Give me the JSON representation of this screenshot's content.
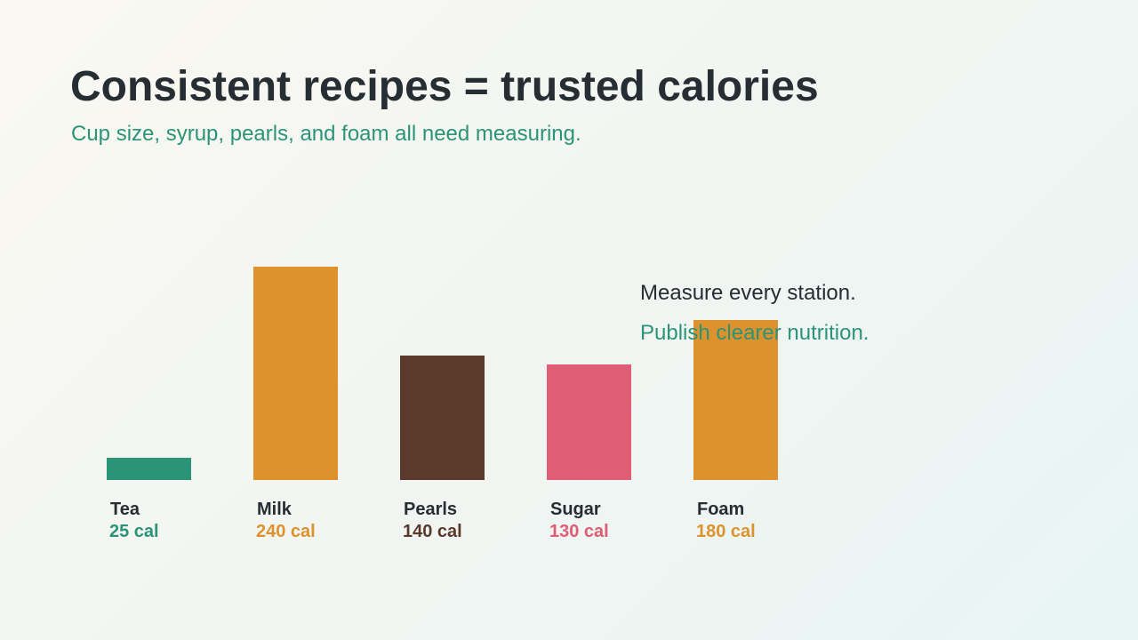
{
  "title": "Consistent recipes = trusted calories",
  "subtitle": "Cup size, syrup, pearls, and foam all need measuring.",
  "notes": {
    "line1": "Measure every station.",
    "line2": "Publish clearer nutrition."
  },
  "colors": {
    "title": "#262d33",
    "accent": "#2b9478"
  },
  "chart_data": {
    "type": "bar",
    "categories": [
      "Tea",
      "Milk",
      "Pearls",
      "Sugar",
      "Foam"
    ],
    "values": [
      25,
      240,
      140,
      130,
      180
    ],
    "value_labels": [
      "25 cal",
      "240 cal",
      "140 cal",
      "130 cal",
      "180 cal"
    ],
    "colors": [
      "#2b9478",
      "#dd922d",
      "#5b392b",
      "#df5d75",
      "#dd922d"
    ],
    "title": "",
    "xlabel": "",
    "ylabel": "",
    "ylim": [
      0,
      240
    ],
    "grid": false,
    "legend": "none"
  }
}
